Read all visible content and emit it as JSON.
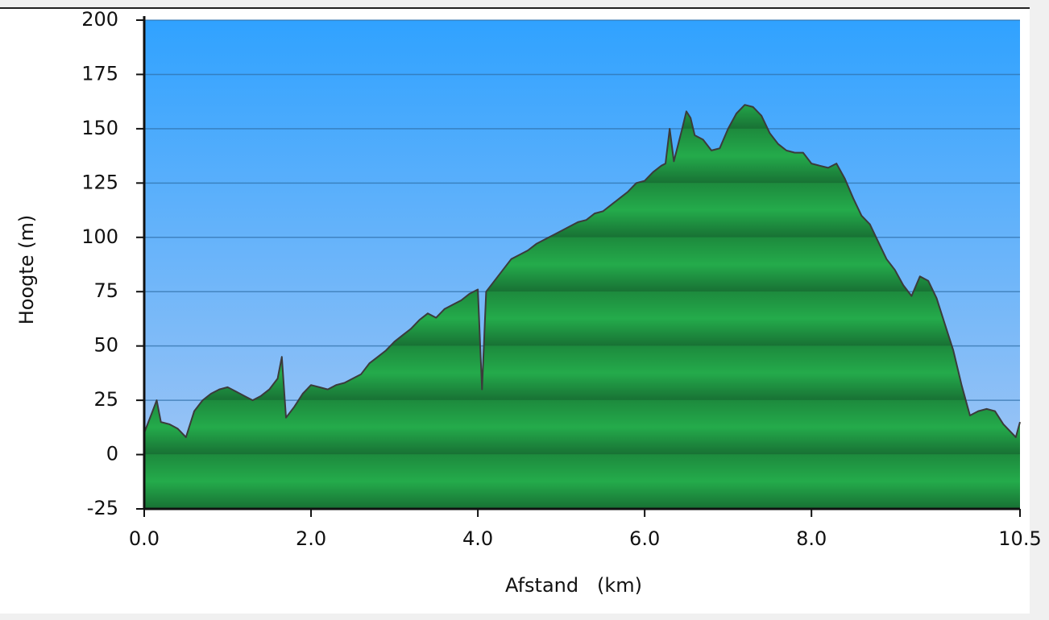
{
  "chart_data": {
    "type": "area",
    "y_label": "Hoogte (m)",
    "x_label": "Afstand   (km)",
    "x": [
      0.0,
      0.1,
      0.15,
      0.2,
      0.3,
      0.4,
      0.5,
      0.6,
      0.7,
      0.8,
      0.9,
      1.0,
      1.1,
      1.2,
      1.3,
      1.4,
      1.5,
      1.6,
      1.65,
      1.7,
      1.8,
      1.9,
      2.0,
      2.1,
      2.2,
      2.3,
      2.4,
      2.5,
      2.6,
      2.7,
      2.8,
      2.9,
      3.0,
      3.1,
      3.2,
      3.3,
      3.4,
      3.5,
      3.6,
      3.7,
      3.8,
      3.9,
      4.0,
      4.05,
      4.1,
      4.2,
      4.3,
      4.4,
      4.5,
      4.6,
      4.7,
      4.8,
      4.9,
      5.0,
      5.1,
      5.2,
      5.3,
      5.4,
      5.5,
      5.6,
      5.7,
      5.8,
      5.9,
      6.0,
      6.1,
      6.2,
      6.25,
      6.3,
      6.35,
      6.45,
      6.5,
      6.55,
      6.6,
      6.7,
      6.8,
      6.9,
      7.0,
      7.1,
      7.2,
      7.3,
      7.4,
      7.5,
      7.6,
      7.7,
      7.8,
      7.9,
      8.0,
      8.1,
      8.2,
      8.3,
      8.4,
      8.5,
      8.6,
      8.7,
      8.8,
      8.9,
      9.0,
      9.1,
      9.2,
      9.3,
      9.4,
      9.5,
      9.6,
      9.7,
      9.8,
      9.9,
      10.0,
      10.1,
      10.2,
      10.3,
      10.4,
      10.45,
      10.5
    ],
    "values": [
      10,
      20,
      25,
      15,
      14,
      12,
      8,
      20,
      25,
      28,
      30,
      31,
      29,
      27,
      25,
      27,
      30,
      35,
      45,
      17,
      22,
      28,
      32,
      31,
      30,
      32,
      33,
      35,
      37,
      42,
      45,
      48,
      52,
      55,
      58,
      62,
      65,
      63,
      67,
      69,
      71,
      74,
      76,
      30,
      75,
      80,
      85,
      90,
      92,
      94,
      97,
      99,
      101,
      103,
      105,
      107,
      108,
      111,
      112,
      115,
      118,
      121,
      125,
      126,
      130,
      133,
      134,
      150,
      135,
      150,
      158,
      155,
      147,
      145,
      140,
      141,
      150,
      157,
      161,
      160,
      156,
      148,
      143,
      140,
      139,
      139,
      134,
      133,
      132,
      134,
      127,
      118,
      110,
      106,
      98,
      90,
      85,
      78,
      73,
      82,
      80,
      72,
      60,
      48,
      32,
      18,
      20,
      21,
      20,
      14,
      10,
      8,
      15
    ],
    "color": "#22a84a",
    "xlim": [
      0,
      10.5
    ],
    "ylim": [
      -25,
      200
    ],
    "xticks": [
      {
        "value": 0,
        "label": "0.0"
      },
      {
        "value": 2,
        "label": "2.0"
      },
      {
        "value": 4,
        "label": "4.0"
      },
      {
        "value": 6,
        "label": "6.0"
      },
      {
        "value": 8,
        "label": "8.0"
      },
      10.5
    ],
    "yticks": [
      -25,
      0,
      25,
      50,
      75,
      100,
      125,
      150,
      175,
      200
    ],
    "grid": true
  }
}
